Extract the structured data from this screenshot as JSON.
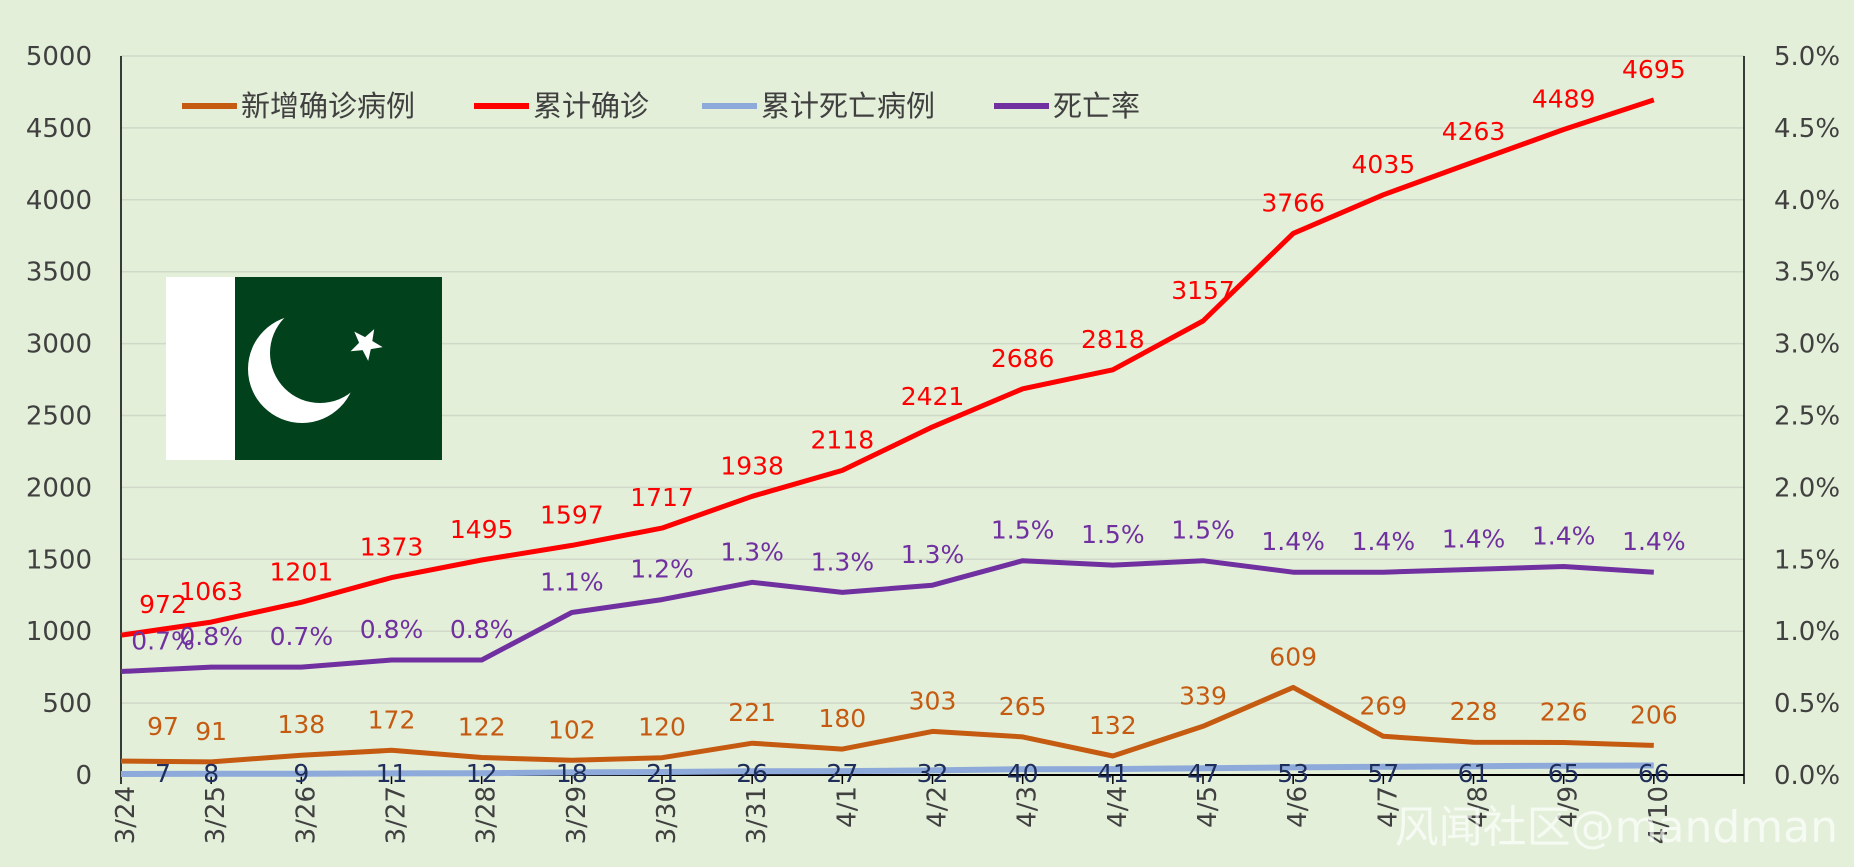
{
  "chart_data": {
    "type": "line",
    "title": "",
    "categories": [
      "3/24",
      "3/25",
      "3/26",
      "3/27",
      "3/28",
      "3/29",
      "3/30",
      "3/31",
      "4/1",
      "4/2",
      "4/3",
      "4/4",
      "4/5",
      "4/6",
      "4/7",
      "4/8",
      "4/9",
      "4/10"
    ],
    "left_axis": {
      "ylim": [
        0,
        5000
      ],
      "ticks": [
        "0",
        "500",
        "1000",
        "1500",
        "2000",
        "2500",
        "3000",
        "3500",
        "4000",
        "4500",
        "5000"
      ]
    },
    "right_axis": {
      "ylim": [
        0,
        0.05
      ],
      "ticks": [
        "0.0%",
        "0.5%",
        "1.0%",
        "1.5%",
        "2.0%",
        "2.5%",
        "3.0%",
        "3.5%",
        "4.0%",
        "4.5%",
        "5.0%"
      ]
    },
    "series": [
      {
        "name": "新增确诊病例",
        "axis": "left",
        "color": "#c55a11",
        "values": [
          97,
          91,
          138,
          172,
          122,
          102,
          120,
          221,
          180,
          303,
          265,
          132,
          339,
          609,
          269,
          228,
          226,
          206
        ],
        "labels": [
          "97",
          "91",
          "138",
          "172",
          "122",
          "102",
          "120",
          "221",
          "180",
          "303",
          "265",
          "132",
          "339",
          "609",
          "269",
          "228",
          "226",
          "206"
        ]
      },
      {
        "name": "累计确诊",
        "axis": "left",
        "color": "#ff0000",
        "values": [
          972,
          1063,
          1201,
          1373,
          1495,
          1597,
          1717,
          1938,
          2118,
          2421,
          2686,
          2818,
          3157,
          3766,
          4035,
          4263,
          4489,
          4695
        ],
        "labels": [
          "972",
          "1063",
          "1201",
          "1373",
          "1495",
          "1597",
          "1717",
          "1938",
          "2118",
          "2421",
          "2686",
          "2818",
          "3157",
          "3766",
          "4035",
          "4263",
          "4489",
          "4695"
        ]
      },
      {
        "name": "累计死亡病例",
        "axis": "left",
        "color": "#8eaadb",
        "label_color": "#1f2e5a",
        "values": [
          7,
          8,
          9,
          11,
          12,
          18,
          21,
          26,
          27,
          32,
          40,
          41,
          47,
          53,
          57,
          61,
          65,
          66
        ],
        "labels": [
          "7",
          "8",
          "9",
          "11",
          "12",
          "18",
          "21",
          "26",
          "27",
          "32",
          "40",
          "41",
          "47",
          "53",
          "57",
          "61",
          "65",
          "66"
        ]
      },
      {
        "name": "死亡率",
        "axis": "right",
        "color": "#7030a0",
        "values": [
          0.0072,
          0.0075,
          0.0075,
          0.008,
          0.008,
          0.0113,
          0.0122,
          0.0134,
          0.0127,
          0.0132,
          0.0149,
          0.0146,
          0.0149,
          0.0141,
          0.0141,
          0.0143,
          0.0145,
          0.0141
        ],
        "labels": [
          "0.7%",
          "0.8%",
          "0.7%",
          "0.8%",
          "0.8%",
          "1.1%",
          "1.2%",
          "1.3%",
          "1.3%",
          "1.3%",
          "1.5%",
          "1.5%",
          "1.5%",
          "1.4%",
          "1.4%",
          "1.4%",
          "1.4%",
          "1.4%"
        ]
      }
    ],
    "legend": {
      "position": "top-left"
    },
    "grid": true
  },
  "flag": {
    "name": "Pakistan flag",
    "green": "#01411c",
    "white": "#ffffff"
  },
  "watermark": "风闻社区@mandman"
}
